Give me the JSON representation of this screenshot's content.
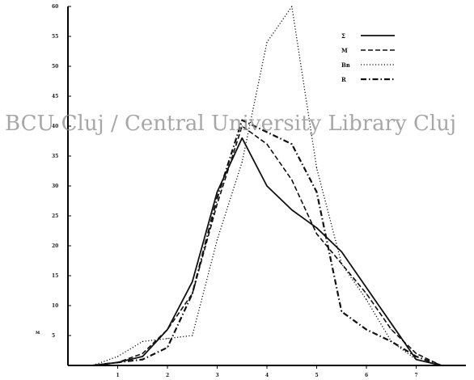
{
  "watermark": "BCU Cluj / Central University Library Cluj",
  "chart_data": {
    "type": "line",
    "title": "",
    "xlabel": "",
    "ylabel": "",
    "y_axis_corner_label": "м",
    "x_ticks": [
      "1",
      "2",
      "3",
      "4",
      "5",
      "6",
      "7"
    ],
    "y_ticks": [
      "5",
      "10",
      "15",
      "20",
      "25",
      "30",
      "35",
      "40",
      "45",
      "50",
      "55",
      "60"
    ],
    "xlim": [
      0.0,
      8.0
    ],
    "ylim": [
      0,
      60
    ],
    "grid": false,
    "legend": "top-right",
    "series": [
      {
        "name": "Σ",
        "style": "solid",
        "color": "#111111",
        "x": [
          0.5,
          1.0,
          1.5,
          2.0,
          2.5,
          3.0,
          3.5,
          4.0,
          4.5,
          5.0,
          5.5,
          6.0,
          6.5,
          7.0,
          7.5
        ],
        "y": [
          0,
          0.5,
          1.5,
          6,
          14,
          29,
          38,
          30,
          26,
          23,
          19,
          13,
          7,
          1,
          0
        ]
      },
      {
        "name": "M",
        "style": "dashed",
        "color": "#111111",
        "x": [
          0.5,
          1.0,
          1.5,
          2.0,
          2.5,
          3.0,
          3.5,
          4.0,
          4.5,
          5.0,
          5.5,
          6.0,
          6.5,
          7.0,
          7.5
        ],
        "y": [
          0,
          0.5,
          2,
          6,
          12,
          27,
          40,
          37,
          31,
          22,
          17,
          12,
          6,
          2,
          0
        ]
      },
      {
        "name": "Bв",
        "style": "dotted",
        "color": "#111111",
        "x": [
          0.5,
          1.0,
          1.5,
          2.0,
          2.5,
          3.0,
          3.5,
          4.0,
          4.5,
          5.0,
          5.5,
          6.0,
          6.5,
          7.0,
          7.5
        ],
        "y": [
          0,
          1.5,
          4,
          4.5,
          5,
          21,
          34,
          54,
          60,
          33,
          17,
          11,
          4,
          1,
          0
        ]
      },
      {
        "name": "R",
        "style": "dash-dot",
        "color": "#111111",
        "x": [
          0.5,
          1.0,
          1.5,
          2.0,
          2.5,
          3.0,
          3.5,
          4.0,
          4.5,
          5.0,
          5.5,
          6.0,
          6.5,
          7.0,
          7.5
        ],
        "y": [
          0,
          0.5,
          1,
          3,
          12,
          28,
          41,
          39,
          37,
          29,
          9,
          6,
          4,
          1.5,
          0
        ]
      }
    ]
  }
}
